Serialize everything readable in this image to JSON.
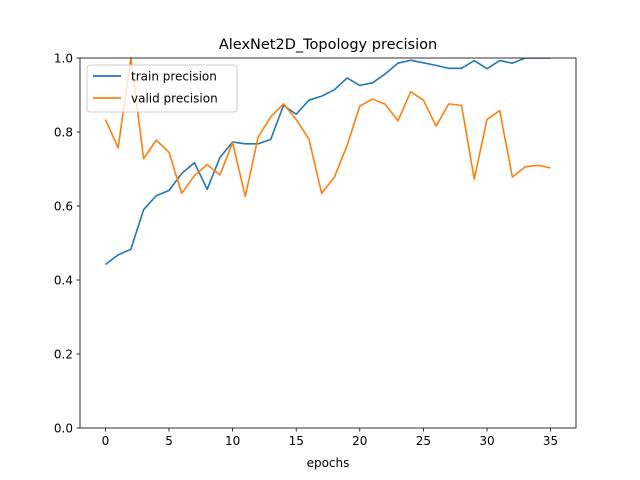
{
  "chart_data": {
    "type": "line",
    "title": "AlexNet2D_Topology precision",
    "xlabel": "epochs",
    "ylabel": "",
    "xlim": [
      -2,
      37
    ],
    "ylim": [
      0.0,
      1.0
    ],
    "xticks": [
      0,
      5,
      10,
      15,
      20,
      25,
      30,
      35
    ],
    "yticks": [
      0.0,
      0.2,
      0.4,
      0.6,
      0.8,
      1.0
    ],
    "xtick_labels": [
      "0",
      "5",
      "10",
      "15",
      "20",
      "25",
      "30",
      "35"
    ],
    "ytick_labels": [
      "0.0",
      "0.2",
      "0.4",
      "0.6",
      "0.8",
      "1.0"
    ],
    "grid": false,
    "legend_position": "top-left",
    "x": [
      0,
      1,
      2,
      3,
      4,
      5,
      6,
      7,
      8,
      9,
      10,
      11,
      12,
      13,
      14,
      15,
      16,
      17,
      18,
      19,
      20,
      21,
      22,
      23,
      24,
      25,
      26,
      27,
      28,
      29,
      30,
      31,
      32,
      33,
      34,
      35
    ],
    "series": [
      {
        "name": "train precision",
        "color": "#1f77b4",
        "values": [
          0.442,
          0.468,
          0.483,
          0.59,
          0.628,
          0.642,
          0.688,
          0.717,
          0.645,
          0.731,
          0.773,
          0.768,
          0.768,
          0.78,
          0.872,
          0.848,
          0.886,
          0.897,
          0.914,
          0.946,
          0.926,
          0.933,
          0.957,
          0.986,
          0.994,
          0.987,
          0.98,
          0.972,
          0.972,
          0.993,
          0.971,
          0.993,
          0.986,
          1.0,
          1.0,
          1.0
        ]
      },
      {
        "name": "valid precision",
        "color": "#ff7f0e",
        "values": [
          0.834,
          0.757,
          1.0,
          0.728,
          0.778,
          0.745,
          0.634,
          0.682,
          0.712,
          0.684,
          0.771,
          0.626,
          0.786,
          0.841,
          0.876,
          0.834,
          0.781,
          0.634,
          0.678,
          0.763,
          0.87,
          0.889,
          0.875,
          0.83,
          0.909,
          0.886,
          0.816,
          0.876,
          0.872,
          0.673,
          0.834,
          0.858,
          0.678,
          0.706,
          0.71,
          0.703
        ]
      }
    ]
  }
}
